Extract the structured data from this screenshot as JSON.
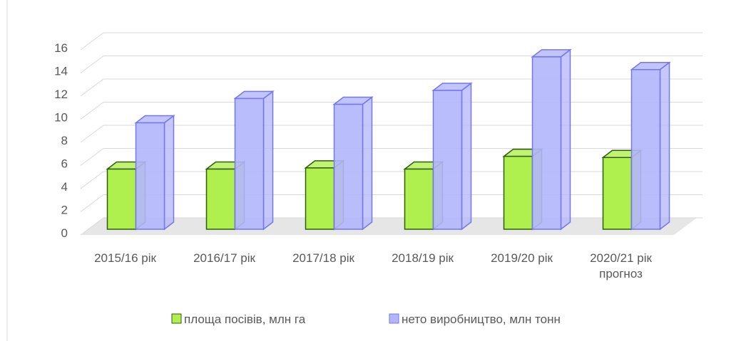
{
  "chart_data": {
    "type": "bar3d",
    "categories": [
      "2015/16 рік",
      "2016/17 рік",
      "2017/18 рік",
      "2018/19 рік",
      "2019/20 рік",
      "2020/21 рік прогноз"
    ],
    "series": [
      {
        "name": "площа посівів, млн га",
        "color": "#b0f04e",
        "values": [
          5.2,
          5.2,
          5.3,
          5.2,
          6.3,
          6.2
        ]
      },
      {
        "name": "нето виробництво, млн тонн",
        "color": "#b3b6fb",
        "values": [
          9.2,
          11.3,
          10.8,
          12.0,
          14.9,
          13.8
        ]
      }
    ],
    "ylim": [
      0,
      16
    ],
    "yticks": [
      0,
      2,
      4,
      6,
      8,
      10,
      12,
      14,
      16
    ],
    "grid": true,
    "legend": "bottom"
  }
}
